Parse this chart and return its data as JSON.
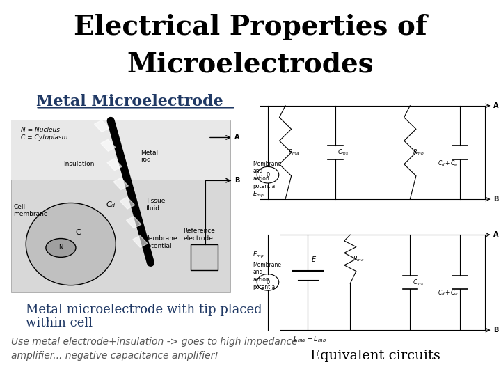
{
  "title_line1": "Electrical Properties of",
  "title_line2": "Microelectrodes",
  "title_fontsize": 28,
  "title_color": "#000000",
  "section_label": "Metal Microelectrode",
  "section_label_color": "#1F3864",
  "section_label_fontsize": 16,
  "caption1_line1": "Metal microelectrode with tip placed",
  "caption1_line2": "within cell",
  "caption1_color": "#1F3864",
  "caption1_fontsize": 13,
  "caption2_line1": "Use metal electrode+insulation -> goes to high impedance",
  "caption2_line2": "amplifier... negative capacitance amplifier!",
  "caption2_color": "#555555",
  "caption2_fontsize": 10,
  "caption3": "Equivalent circuits",
  "caption3_color": "#000000",
  "caption3_fontsize": 14,
  "bg_color": "#ffffff"
}
